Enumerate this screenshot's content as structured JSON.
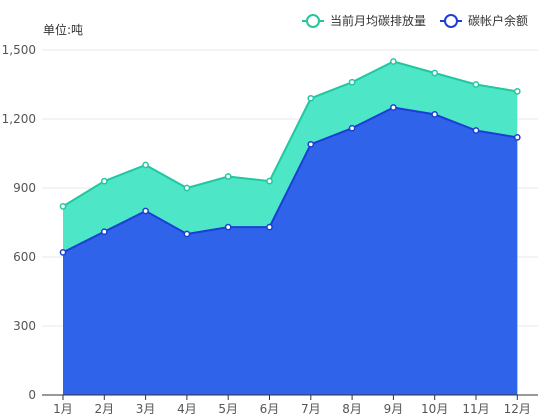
{
  "unit_label": "单位:吨",
  "colors": {
    "emission_line": "#22c7a0",
    "emission_fill": "#4de6c6",
    "account_line": "#1b3fd6",
    "account_fill": "#2f63ea",
    "grid": "#e9e9e9",
    "axis": "#333333",
    "tick_text": "#555555"
  },
  "chart_data": {
    "type": "area",
    "categories": [
      "1月",
      "2月",
      "3月",
      "4月",
      "5月",
      "6月",
      "7月",
      "8月",
      "9月",
      "10月",
      "11月",
      "12月"
    ],
    "series": [
      {
        "name": "当前月均碳排放量",
        "values": [
          820,
          930,
          1000,
          900,
          950,
          930,
          1290,
          1360,
          1450,
          1400,
          1350,
          1320
        ]
      },
      {
        "name": "碳帐户余额",
        "values": [
          620,
          710,
          800,
          700,
          730,
          730,
          1090,
          1160,
          1250,
          1220,
          1150,
          1120
        ]
      }
    ],
    "yticks": [
      "0",
      "300",
      "600",
      "900",
      "1,200",
      "1,500"
    ],
    "ylim": [
      0,
      1500
    ],
    "grid": true,
    "legend_position": "top-right"
  }
}
